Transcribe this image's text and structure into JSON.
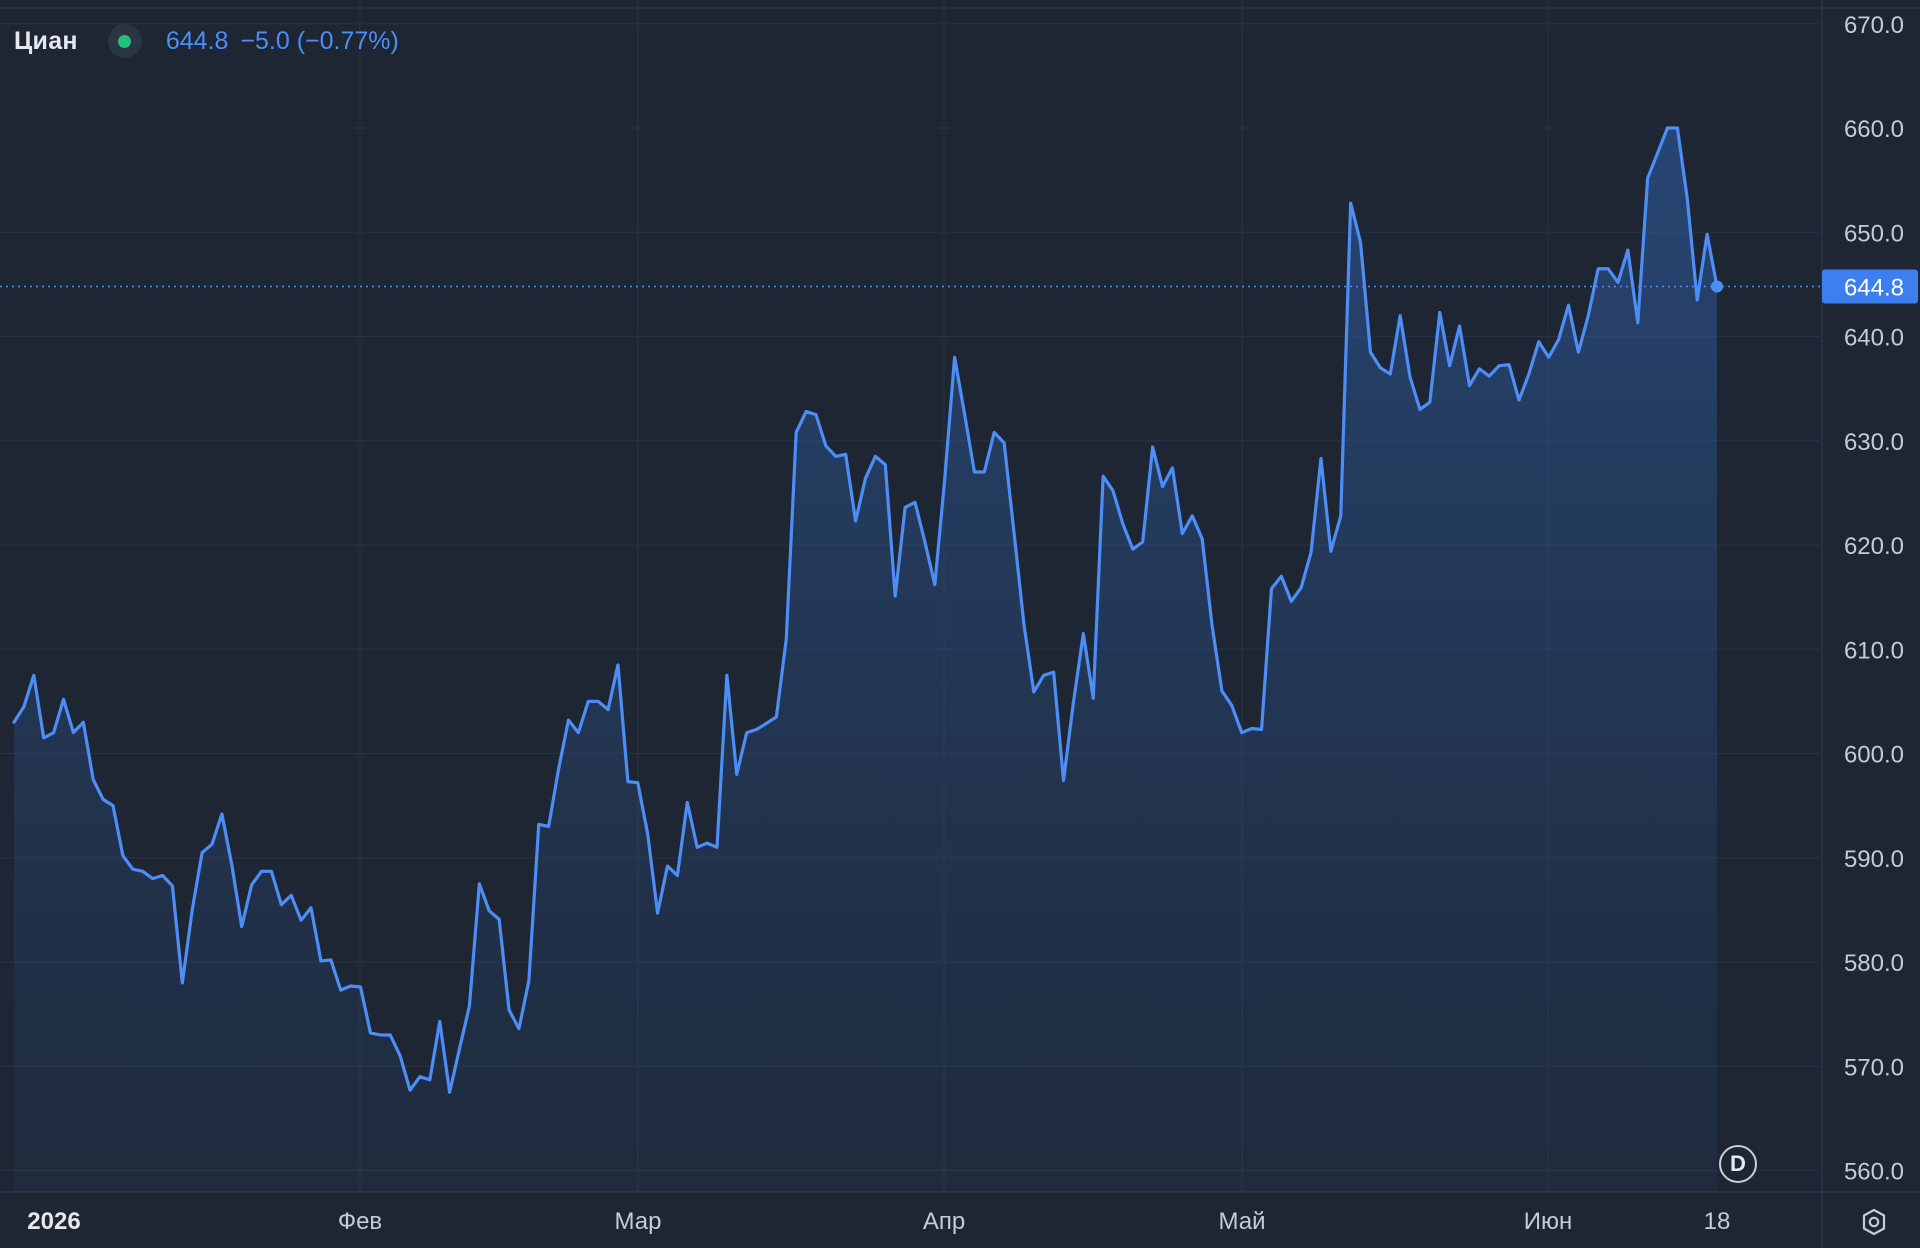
{
  "legend": {
    "symbol": "Циан",
    "status_color": "#22c07a",
    "price": "644.8",
    "change": "−5.0 (−0.77%)"
  },
  "colors": {
    "background": "#1e2633",
    "line": "#4c8df6",
    "grid": "#283142",
    "axis_text": "#c7cbd3",
    "price_tag": "#3d7fee"
  },
  "interval_badge": "D",
  "chart_data": {
    "type": "area",
    "title": "",
    "ylim": [
      560,
      670
    ],
    "y_ticks": [
      "670.0",
      "660.0",
      "650.0",
      "640.0",
      "630.0",
      "620.0",
      "610.0",
      "600.0",
      "590.0",
      "580.0",
      "570.0",
      "560.0"
    ],
    "x_ticks": [
      "2026",
      "Фев",
      "Мар",
      "Апр",
      "Май",
      "Июн",
      "18"
    ],
    "last_value_label": "644.8",
    "grid": true,
    "series": [
      {
        "values": [
          603,
          604.5,
          607.5,
          601.5,
          602,
          605.2,
          602,
          603,
          597.5,
          595.6,
          595,
          590.2,
          588.9,
          588.7,
          588,
          588.3,
          587.3,
          578,
          585,
          590.5,
          591.3,
          594.2,
          589.3,
          583.4,
          587.4,
          588.7,
          588.7,
          585.5,
          586.4,
          584,
          585.2,
          580.1,
          580.2,
          577.3,
          577.7,
          577.6,
          573.2,
          573,
          573,
          571,
          567.7,
          569,
          568.7,
          574.3,
          567.5,
          571.7,
          575.8,
          587.5,
          584.9,
          584.1,
          575.4,
          573.6,
          578.2,
          593.2,
          593,
          598.5,
          603.2,
          602,
          605,
          605,
          604.2,
          608.5,
          597.3,
          597.2,
          592.3,
          584.7,
          589.2,
          588.3,
          595.3,
          591,
          591.4,
          591,
          607.5,
          598,
          602,
          602.3,
          602.9,
          603.5,
          611,
          630.8,
          632.8,
          632.5,
          629.5,
          628.5,
          628.7,
          622.3,
          626.4,
          628.5,
          627.7,
          615.1,
          623.6,
          624.1,
          620.3,
          616.2,
          626.3,
          638,
          632.6,
          627,
          627,
          630.8,
          629.8,
          621.2,
          612.4,
          605.9,
          607.5,
          607.8,
          597.4,
          604.9,
          611.5,
          605.3,
          626.6,
          625.2,
          622,
          619.6,
          620.3,
          629.4,
          625.6,
          627.4,
          621.1,
          622.8,
          620.6,
          612.3,
          606,
          604.6,
          602,
          602.4,
          602.3,
          615.8,
          617,
          614.6,
          615.9,
          619.3,
          628.3,
          619.4,
          622.8,
          652.8,
          649,
          638.5,
          637,
          636.4,
          642,
          636.1,
          633,
          633.7,
          642.3,
          637.2,
          641,
          635.3,
          636.9,
          636.2,
          637.2,
          637.3,
          633.9,
          636.4,
          639.5,
          638,
          639.7,
          643,
          638.5,
          642,
          646.5,
          646.5,
          645.2,
          648.3,
          641.3,
          655.2,
          657.6,
          660,
          660,
          653.2,
          643.5,
          649.8,
          644.8
        ]
      }
    ]
  }
}
